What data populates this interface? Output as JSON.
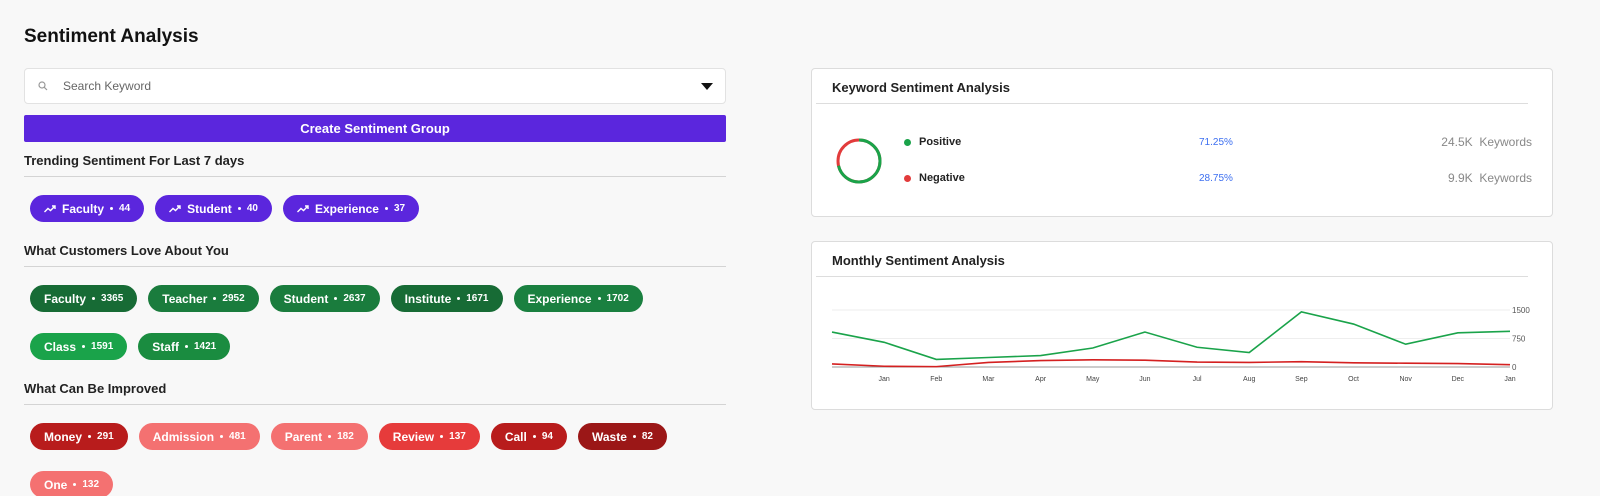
{
  "page": {
    "title": "Sentiment Analysis"
  },
  "search": {
    "placeholder": "Search Keyword"
  },
  "create_button": {
    "label": "Create Sentiment Group"
  },
  "sections": [
    {
      "title": "Trending Sentiment For Last 7 days",
      "trend": true,
      "chips": [
        {
          "label": "Faculty",
          "count": "44",
          "color": "#5b26dd"
        },
        {
          "label": "Student",
          "count": "40",
          "color": "#5b26dd"
        },
        {
          "label": "Experience",
          "count": "37",
          "color": "#5b26dd"
        }
      ]
    },
    {
      "title": "What Customers Love About You",
      "trend": false,
      "chips": [
        {
          "label": "Faculty",
          "count": "3365",
          "color": "#176b35"
        },
        {
          "label": "Teacher",
          "count": "2952",
          "color": "#1a7c3d"
        },
        {
          "label": "Student",
          "count": "2637",
          "color": "#1a7c3d"
        },
        {
          "label": "Institute",
          "count": "1671",
          "color": "#176b35"
        },
        {
          "label": "Experience",
          "count": "1702",
          "color": "#1a8040"
        },
        {
          "label": "Class",
          "count": "1591",
          "color": "#1aa34a"
        },
        {
          "label": "Staff",
          "count": "1421",
          "color": "#1a8c40"
        }
      ]
    },
    {
      "title": "What Can Be Improved",
      "trend": false,
      "chips": [
        {
          "label": "Money",
          "count": "291",
          "color": "#b81c1c"
        },
        {
          "label": "Admission",
          "count": "481",
          "color": "#f47171"
        },
        {
          "label": "Parent",
          "count": "182",
          "color": "#f47171"
        },
        {
          "label": "Review",
          "count": "137",
          "color": "#e63b3b"
        },
        {
          "label": "Call",
          "count": "94",
          "color": "#b81c1c"
        },
        {
          "label": "Waste",
          "count": "82",
          "color": "#9b1717"
        },
        {
          "label": "One",
          "count": "132",
          "color": "#f47171"
        }
      ]
    }
  ],
  "keyword_card": {
    "title": "Keyword Sentiment Analysis",
    "rows": [
      {
        "label": "Positive",
        "percent": "71.25%",
        "value": 71.25,
        "count": "24.5K",
        "unit": "Keywords",
        "color": "#1aa34a"
      },
      {
        "label": "Negative",
        "percent": "28.75%",
        "value": 28.75,
        "count": "9.9K",
        "unit": "Keywords",
        "color": "#e23b3b"
      }
    ]
  },
  "monthly_card": {
    "title": "Monthly Sentiment Analysis"
  },
  "chart_data": {
    "type": "line",
    "categories": [
      "",
      "Jan",
      "Feb",
      "Mar",
      "Apr",
      "May",
      "Jun",
      "Jul",
      "Aug",
      "Sep",
      "Oct",
      "Nov",
      "Dec",
      "Jan"
    ],
    "series": [
      {
        "color": "#1aa34a",
        "values": [
          920,
          650,
          200,
          250,
          300,
          500,
          920,
          520,
          380,
          1450,
          1130,
          600,
          900,
          940
        ]
      },
      {
        "color": "#d42020",
        "values": [
          80,
          20,
          10,
          120,
          170,
          190,
          180,
          130,
          120,
          140,
          110,
          100,
          90,
          60
        ]
      }
    ],
    "yticks": [
      0,
      750,
      1500
    ],
    "ylim": [
      0,
      1500
    ],
    "grid": true,
    "legend": "none"
  }
}
